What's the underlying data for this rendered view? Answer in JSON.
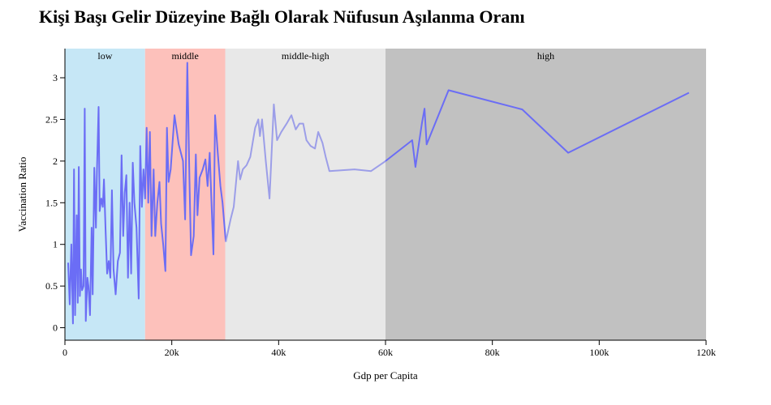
{
  "chart_data": {
    "type": "line",
    "title": "Kişi Başı Gelir Düzeyine Bağlı Olarak Nüfusun Aşılanma Oranı",
    "xlabel": "Gdp per Capita",
    "ylabel": "Vaccination Ratio",
    "xlim": [
      0,
      120000
    ],
    "ylim": [
      -0.15,
      3.35
    ],
    "x_ticks": [
      0,
      20000,
      40000,
      60000,
      80000,
      100000,
      120000
    ],
    "x_tick_labels": [
      "0",
      "20k",
      "40k",
      "60k",
      "80k",
      "100k",
      "120k"
    ],
    "y_ticks": [
      0,
      0.5,
      1,
      1.5,
      2,
      2.5,
      3
    ],
    "y_tick_labels": [
      "0",
      "0.5",
      "1",
      "1.5",
      "2",
      "2.5",
      "3"
    ],
    "grid": false,
    "bands": [
      {
        "label": "low",
        "from": 0,
        "to": 15000,
        "color": "#c6e7f6"
      },
      {
        "label": "middle",
        "from": 15000,
        "to": 30000,
        "color": "#fdc1bb"
      },
      {
        "label": "middle-high",
        "from": 30000,
        "to": 60000,
        "color": "#e8e8e8"
      },
      {
        "label": "high",
        "from": 60000,
        "to": 120000,
        "color": "#c1c1c1"
      }
    ],
    "line_color": "#6b6df5",
    "series": [
      {
        "points": [
          [
            600,
            0.78
          ],
          [
            900,
            0.28
          ],
          [
            1200,
            1.0
          ],
          [
            1500,
            0.05
          ],
          [
            1700,
            1.9
          ],
          [
            1900,
            0.15
          ],
          [
            2200,
            1.35
          ],
          [
            2400,
            0.3
          ],
          [
            2600,
            1.93
          ],
          [
            2800,
            0.38
          ],
          [
            3000,
            0.7
          ],
          [
            3200,
            0.45
          ],
          [
            3500,
            0.5
          ],
          [
            3700,
            2.63
          ],
          [
            3900,
            0.08
          ],
          [
            4200,
            0.6
          ],
          [
            4400,
            0.5
          ],
          [
            4700,
            0.15
          ],
          [
            5000,
            1.2
          ],
          [
            5200,
            0.4
          ],
          [
            5500,
            1.92
          ],
          [
            5800,
            1.2
          ],
          [
            6000,
            1.9
          ],
          [
            6300,
            2.65
          ],
          [
            6500,
            1.4
          ],
          [
            6800,
            1.55
          ],
          [
            7100,
            1.45
          ],
          [
            7300,
            1.78
          ],
          [
            7600,
            1.2
          ],
          [
            7900,
            0.65
          ],
          [
            8200,
            0.8
          ],
          [
            8500,
            0.6
          ],
          [
            8800,
            1.65
          ],
          [
            9100,
            0.7
          ],
          [
            9500,
            0.4
          ],
          [
            9900,
            0.8
          ],
          [
            10300,
            0.9
          ],
          [
            10600,
            2.07
          ],
          [
            10900,
            1.1
          ],
          [
            11200,
            1.62
          ],
          [
            11500,
            1.83
          ],
          [
            11800,
            0.6
          ],
          [
            12100,
            1.5
          ],
          [
            12400,
            0.65
          ],
          [
            12700,
            1.98
          ],
          [
            13000,
            1.5
          ],
          [
            13400,
            1.2
          ],
          [
            13800,
            0.35
          ],
          [
            14100,
            2.18
          ],
          [
            14400,
            1.45
          ],
          [
            14700,
            1.9
          ],
          [
            15000,
            1.55
          ],
          [
            15300,
            2.4
          ],
          [
            15600,
            1.5
          ],
          [
            15900,
            2.35
          ],
          [
            16200,
            1.1
          ],
          [
            16600,
            1.9
          ],
          [
            16900,
            1.1
          ],
          [
            17300,
            1.5
          ],
          [
            17700,
            1.75
          ],
          [
            18000,
            1.25
          ],
          [
            18400,
            1.0
          ],
          [
            18800,
            0.68
          ],
          [
            19100,
            2.4
          ],
          [
            19400,
            1.75
          ],
          [
            19800,
            1.9
          ],
          [
            20500,
            2.55
          ],
          [
            21300,
            2.2
          ],
          [
            22100,
            2.0
          ],
          [
            22500,
            1.3
          ],
          [
            22900,
            3.18
          ],
          [
            23300,
            1.8
          ],
          [
            23600,
            0.87
          ],
          [
            24100,
            1.1
          ],
          [
            24500,
            2.08
          ],
          [
            24800,
            1.35
          ],
          [
            25200,
            1.8
          ],
          [
            25800,
            1.9
          ],
          [
            26300,
            2.02
          ],
          [
            26700,
            1.7
          ],
          [
            27100,
            2.1
          ],
          [
            27400,
            1.55
          ],
          [
            27800,
            0.88
          ],
          [
            28100,
            2.55
          ],
          [
            28600,
            2.1
          ],
          [
            29100,
            1.7
          ],
          [
            29500,
            1.5
          ],
          [
            30100,
            1.03
          ],
          [
            31000,
            1.3
          ],
          [
            31600,
            1.45
          ],
          [
            32400,
            2.0
          ],
          [
            32800,
            1.78
          ],
          [
            33300,
            1.9
          ],
          [
            34000,
            1.95
          ],
          [
            34700,
            2.05
          ],
          [
            35600,
            2.4
          ],
          [
            36200,
            2.5
          ],
          [
            36500,
            2.3
          ],
          [
            36900,
            2.5
          ],
          [
            37600,
            2.0
          ],
          [
            38300,
            1.55
          ],
          [
            39100,
            2.68
          ],
          [
            39700,
            2.25
          ],
          [
            40500,
            2.35
          ],
          [
            41500,
            2.45
          ],
          [
            42400,
            2.55
          ],
          [
            43200,
            2.38
          ],
          [
            43900,
            2.45
          ],
          [
            44600,
            2.45
          ],
          [
            45200,
            2.25
          ],
          [
            46000,
            2.18
          ],
          [
            46800,
            2.15
          ],
          [
            47400,
            2.35
          ],
          [
            48200,
            2.22
          ],
          [
            48800,
            2.05
          ],
          [
            49500,
            1.88
          ],
          [
            54200,
            1.9
          ],
          [
            57300,
            1.88
          ],
          [
            60000,
            2.0
          ],
          [
            65000,
            2.25
          ],
          [
            65600,
            1.93
          ],
          [
            66800,
            2.45
          ],
          [
            67300,
            2.63
          ],
          [
            67700,
            2.2
          ],
          [
            71800,
            2.85
          ],
          [
            85600,
            2.62
          ],
          [
            94200,
            2.1
          ],
          [
            116800,
            2.82
          ]
        ]
      }
    ]
  }
}
